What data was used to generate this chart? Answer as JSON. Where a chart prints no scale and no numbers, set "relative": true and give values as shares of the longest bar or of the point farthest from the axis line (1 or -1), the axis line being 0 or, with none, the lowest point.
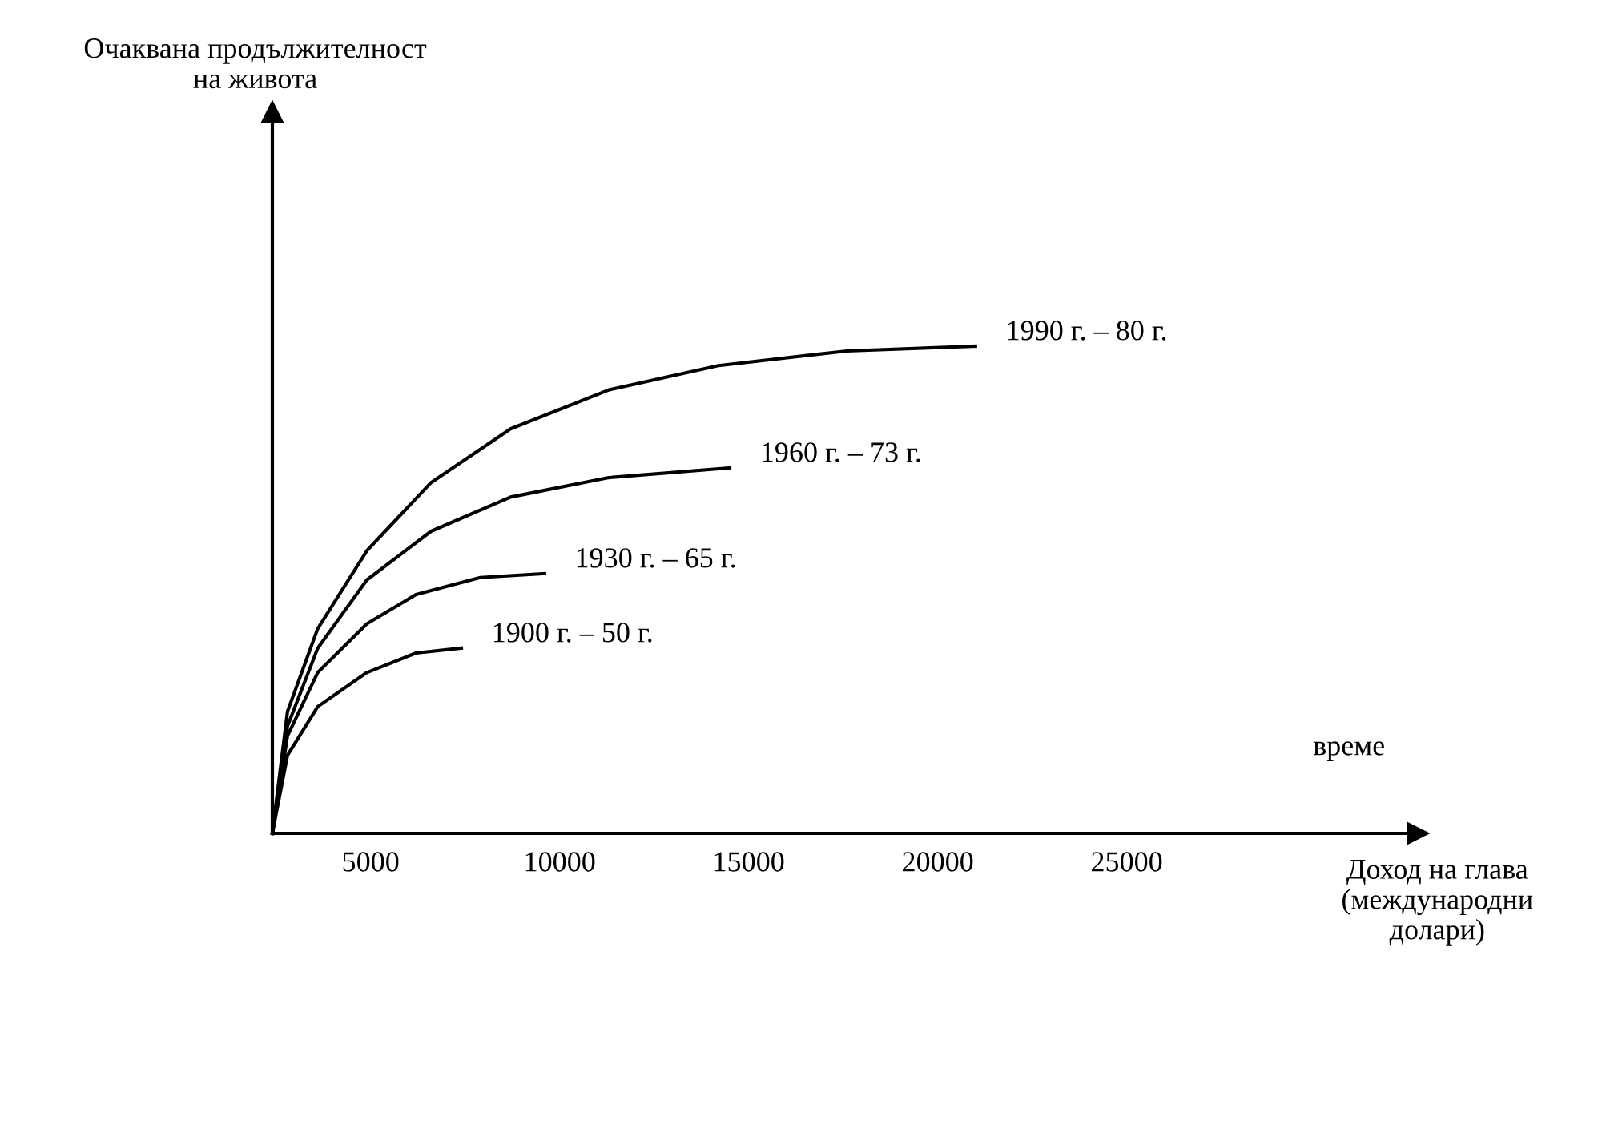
{
  "chart_data": {
    "type": "line",
    "relative": true,
    "xlabel": "Доход на глава\n(международни\nдолари)",
    "annotations": [
      "Очаквана продължителност\nна живота",
      "време"
    ],
    "xlim": [
      2400,
      32700
    ],
    "xticks": [
      5000,
      10000,
      15000,
      20000,
      25000
    ],
    "grid": false,
    "legend": false,
    "marker": "none",
    "line_style": "solid",
    "series": [
      {
        "name": "1990 г. – 80 г.",
        "color": "#000000",
        "x": [
          2400,
          2800,
          3600,
          4900,
          6600,
          8700,
          11300,
          14200,
          17600,
          21000
        ],
        "values": [
          0,
          0.25,
          0.42,
          0.58,
          0.72,
          0.83,
          0.91,
          0.96,
          0.99,
          1.0
        ]
      },
      {
        "name": "1960 г. – 73 г.",
        "color": "#000000",
        "x": [
          2400,
          2800,
          3600,
          4900,
          6600,
          8700,
          11300,
          14500
        ],
        "values": [
          0,
          0.22,
          0.38,
          0.52,
          0.62,
          0.69,
          0.73,
          0.75
        ]
      },
      {
        "name": "1930 г. – 65 г.",
        "color": "#000000",
        "x": [
          2400,
          2800,
          3600,
          4900,
          6200,
          7900,
          9600
        ],
        "values": [
          0,
          0.2,
          0.33,
          0.43,
          0.49,
          0.525,
          0.533
        ]
      },
      {
        "name": "1900 г. – 50 г.",
        "color": "#000000",
        "x": [
          2400,
          2800,
          3600,
          4900,
          6200,
          7400
        ],
        "values": [
          0,
          0.16,
          0.26,
          0.33,
          0.37,
          0.38
        ]
      }
    ]
  }
}
